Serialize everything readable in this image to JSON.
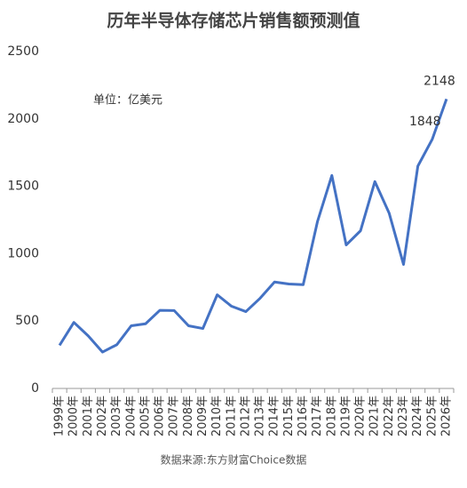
{
  "chart_data": {
    "type": "line",
    "title": "历年半导体存储芯片销售额预测值",
    "unit_note": "单位：亿美元",
    "source": "数据来源:东方财富Choice数据",
    "categories": [
      "1999年",
      "2000年",
      "2001年",
      "2002年",
      "2003年",
      "2004年",
      "2005年",
      "2006年",
      "2007年",
      "2008年",
      "2009年",
      "2010年",
      "2011年",
      "2012年",
      "2013年",
      "2014年",
      "2015年",
      "2016年",
      "2017年",
      "2018年",
      "2019年",
      "2020年",
      "2021年",
      "2022年",
      "2023年",
      "2024年",
      "2025年",
      "2026年"
    ],
    "values": [
      320,
      490,
      390,
      270,
      325,
      465,
      480,
      580,
      578,
      465,
      445,
      695,
      610,
      570,
      670,
      790,
      775,
      770,
      1240,
      1580,
      1065,
      1170,
      1535,
      1300,
      920,
      1650,
      1848,
      2148
    ],
    "value_labels": [
      null,
      null,
      null,
      null,
      null,
      null,
      null,
      null,
      null,
      null,
      null,
      null,
      null,
      null,
      null,
      null,
      null,
      null,
      null,
      null,
      null,
      null,
      null,
      null,
      null,
      null,
      "1848",
      "2148"
    ],
    "color": "#4472c4",
    "ylim": [
      0,
      2500
    ],
    "yticks": [
      0,
      500,
      1000,
      1500,
      2000,
      2500
    ],
    "grid": false
  }
}
